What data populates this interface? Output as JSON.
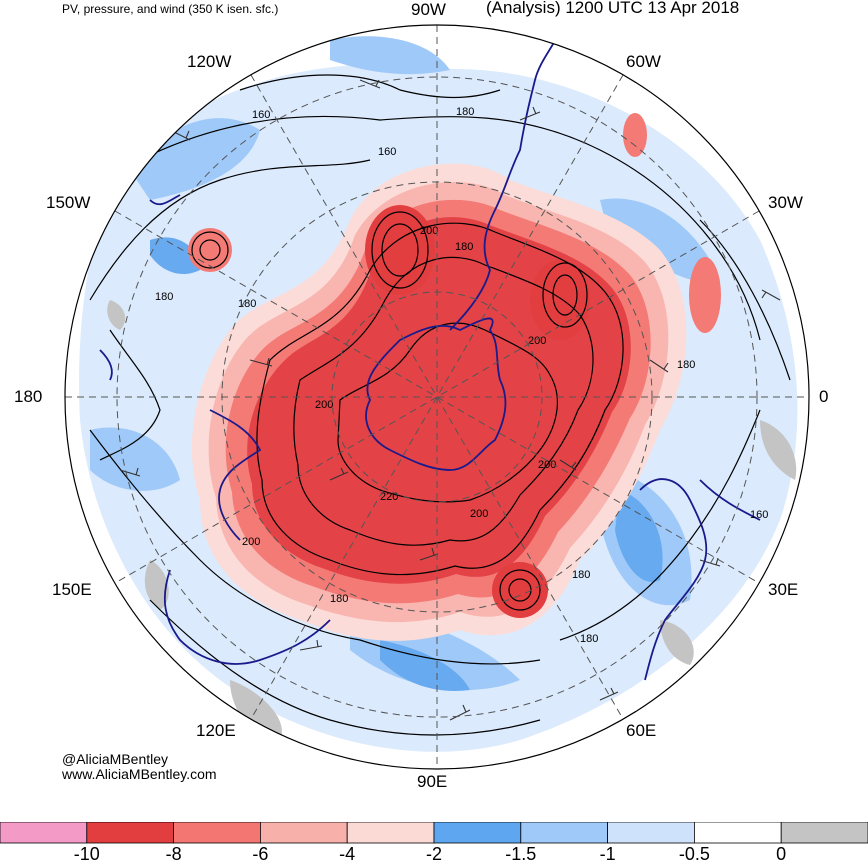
{
  "header": {
    "subtitle": "PV, pressure, and wind (350 K isen. sfc.)",
    "title": "(Analysis) 1200 UTC 13 Apr 2018"
  },
  "longitude_labels": {
    "w90": "90W",
    "w60": "60W",
    "w120": "120W",
    "w150": "150W",
    "w30": "30W",
    "d180": "180",
    "d0": "0",
    "e150": "150E",
    "e30": "30E",
    "e120": "120E",
    "e60": "60E",
    "e90": "90E"
  },
  "contour_labels": [
    "160",
    "180",
    "160",
    "180",
    "180",
    "200",
    "200",
    "200",
    "180",
    "200",
    "220",
    "200",
    "200",
    "180",
    "180",
    "180",
    "180",
    "160"
  ],
  "credit": {
    "handle": "@AliciaMBentley",
    "site": "www.AliciaMBentley.com"
  },
  "colorbar": {
    "ticks": [
      "-10",
      "-8",
      "-6",
      "-4",
      "-2",
      "-1.5",
      "-1",
      "-0.5",
      "0"
    ],
    "colors": [
      "#f39ac7",
      "#e23d3f",
      "#f47672",
      "#f8b0ab",
      "#fbd9d5",
      "#5ea6ef",
      "#9fc9f8",
      "#cfe2fb",
      "#ffffff",
      "#c4c4c4"
    ]
  },
  "map_colors": {
    "strong_red": "#e34346",
    "mid_red": "#f47a76",
    "light_red": "#f9b6b1",
    "pale_red": "#fcdcd8",
    "blue": "#67aaf0",
    "light_blue": "#a9cff8",
    "pale_blue": "#d2e5fb",
    "gray": "#c4c4c4",
    "coast": "#1a1a8c"
  }
}
